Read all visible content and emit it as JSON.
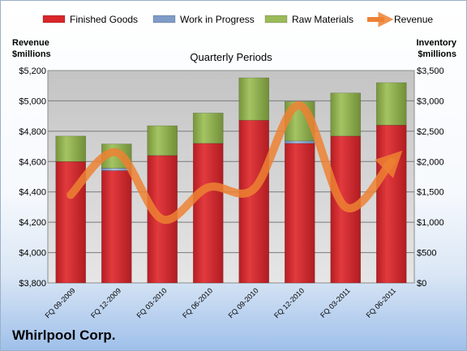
{
  "company": "Whirlpool Corp.",
  "chart_data": {
    "type": "bar",
    "stacked": true,
    "title": "Quarterly Periods",
    "ylabel_left": [
      "Revenue",
      "$millions"
    ],
    "ylabel_right": [
      "Inventory",
      "$millions"
    ],
    "categories": [
      "FQ 09-2009",
      "FQ 12-2009",
      "FQ 03-2010",
      "FQ 06-2010",
      "FQ 09-2010",
      "FQ 12-2010",
      "FQ 03-2011",
      "FQ 06-2011"
    ],
    "series": [
      {
        "name": "Finished Goods",
        "axis": "right",
        "color": "#d9262b",
        "values": [
          2000,
          1850,
          2100,
          2300,
          2680,
          2300,
          2420,
          2600
        ]
      },
      {
        "name": "Work in Progress",
        "axis": "right",
        "color": "#7f9cc8",
        "values": [
          0,
          40,
          0,
          0,
          0,
          40,
          0,
          0
        ]
      },
      {
        "name": "Raw Materials",
        "axis": "right",
        "color": "#9bbb59",
        "values": [
          420,
          400,
          490,
          500,
          700,
          650,
          710,
          700
        ]
      }
    ],
    "line_series": {
      "name": "Revenue",
      "axis": "left",
      "color": "#ed8132",
      "values": [
        4380,
        4660,
        4220,
        4430,
        4420,
        4970,
        4300,
        4600
      ]
    },
    "yleft_ticks": [
      "$3,800",
      "$4,000",
      "$4,200",
      "$4,400",
      "$4,600",
      "$4,800",
      "$5,000",
      "$5,200"
    ],
    "yleft_range": [
      3800,
      5200
    ],
    "yright_ticks": [
      "$0",
      "$500",
      "$1,000",
      "$1,500",
      "$2,000",
      "$2,500",
      "$3,000",
      "$3,500"
    ],
    "yright_range": [
      0,
      3500
    ],
    "legend_position": "top",
    "grid": true
  }
}
